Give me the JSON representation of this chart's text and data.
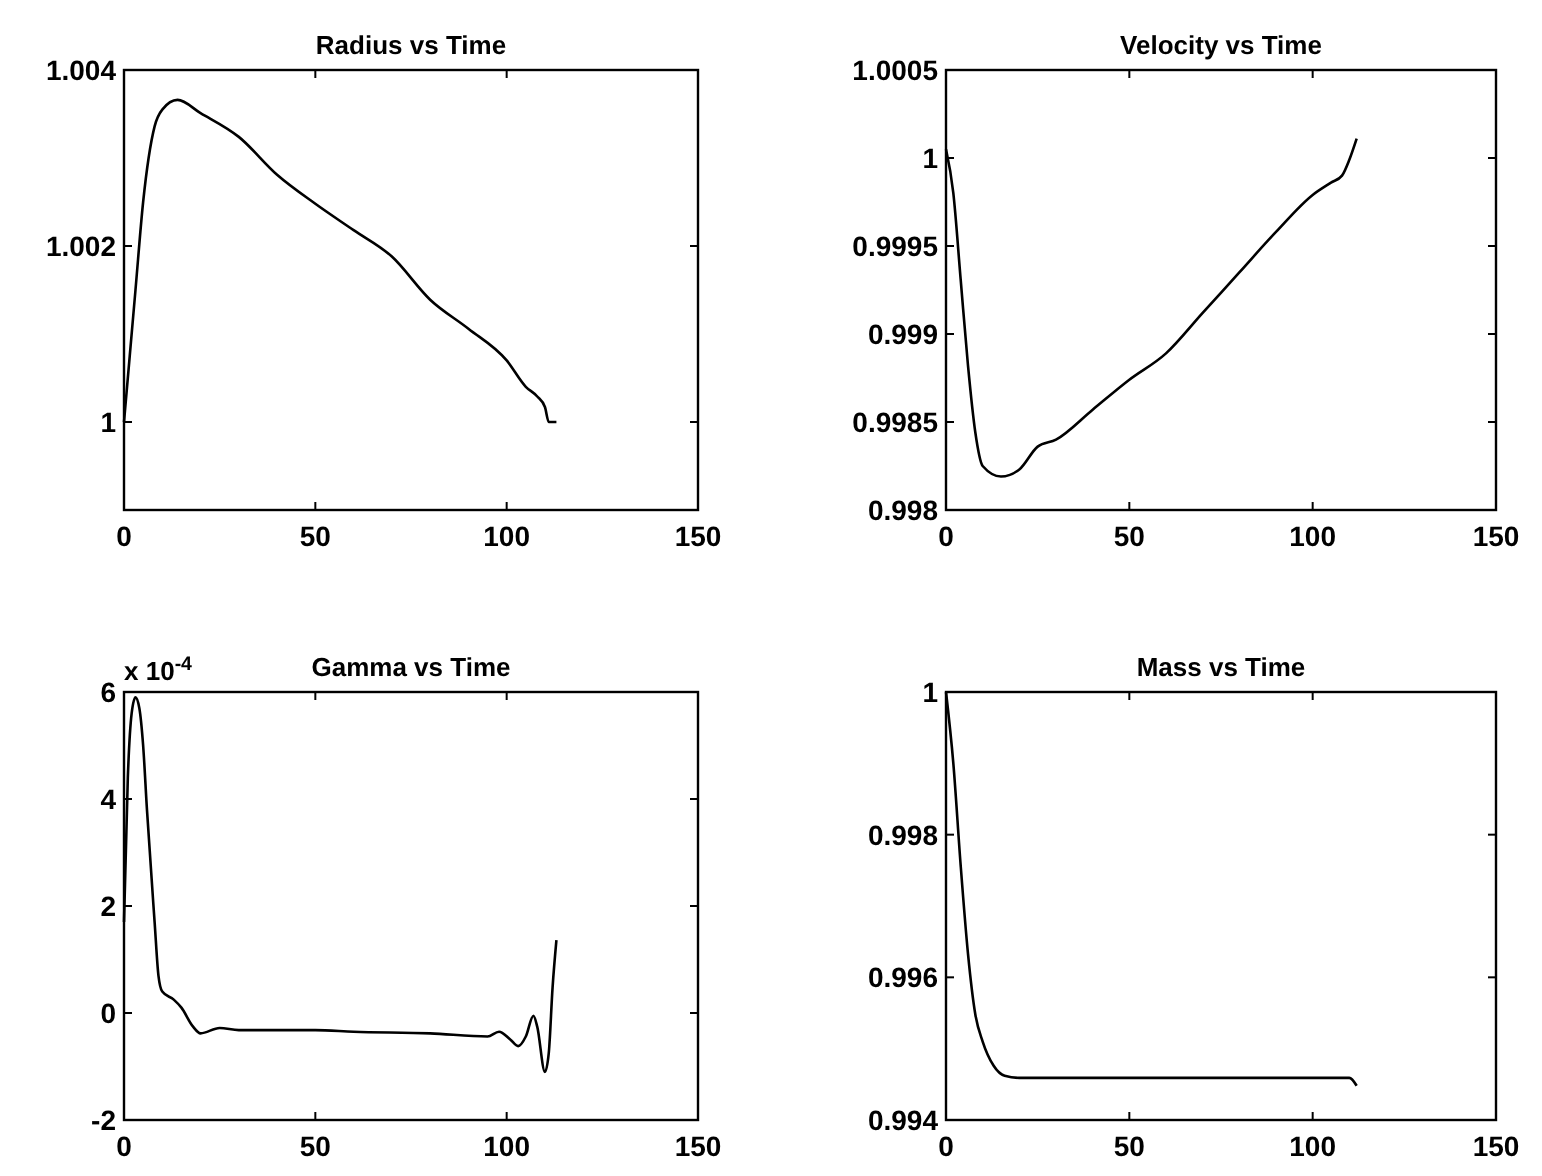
{
  "chart_data": [
    {
      "type": "line",
      "title": "Radius vs Time",
      "color": "#000000",
      "xlim": [
        0,
        150
      ],
      "xticks": [
        0,
        50,
        100,
        150
      ],
      "ylim": [
        0.999,
        1.004
      ],
      "yticks": [
        1,
        1.002,
        1.004
      ],
      "x": [
        0,
        3,
        5,
        8,
        10,
        14,
        20,
        30,
        40,
        50,
        60,
        70,
        80,
        90,
        100,
        105,
        108,
        110,
        111,
        113
      ],
      "values": [
        1.0,
        1.0015,
        1.0025,
        1.00336,
        1.00355,
        1.00366,
        1.00351,
        1.00324,
        1.00281,
        1.00248,
        1.00218,
        1.00188,
        1.00139,
        1.00106,
        1.0007,
        1.0004,
        1.00029,
        1.00017,
        1.0,
        1.0
      ]
    },
    {
      "type": "line",
      "title": "Velocity vs Time",
      "color": "#000000",
      "xlim": [
        0,
        150
      ],
      "xticks": [
        0,
        50,
        100,
        150
      ],
      "ylim": [
        0.998,
        1.0005
      ],
      "yticks": [
        0.998,
        0.9985,
        0.999,
        0.9995,
        1,
        1.0005
      ],
      "x": [
        0,
        2,
        4,
        6,
        8,
        10,
        15,
        20,
        25,
        30,
        40,
        50,
        60,
        70,
        80,
        90,
        100,
        105,
        108,
        110,
        112
      ],
      "values": [
        1.00005,
        0.9998,
        0.99931,
        0.99882,
        0.99844,
        0.99825,
        0.99819,
        0.99823,
        0.99836,
        0.9984,
        0.99857,
        0.99874,
        0.99889,
        0.99912,
        0.99935,
        0.99958,
        0.99979,
        0.99986,
        0.9999,
        0.99999,
        1.00011
      ]
    },
    {
      "type": "line",
      "title": "Gamma vs Time",
      "color": "#000000",
      "annotations": [
        "x 10$^{-4}$"
      ],
      "xlim": [
        0,
        150
      ],
      "xticks": [
        0,
        50,
        100,
        150
      ],
      "ylim": [
        -2,
        6
      ],
      "yticks": [
        -2,
        0,
        2,
        4,
        6
      ],
      "x": [
        0,
        1,
        2,
        3,
        4,
        5,
        6,
        8,
        9,
        10,
        13,
        15,
        18,
        20,
        25,
        30,
        50,
        60,
        80,
        95,
        98,
        101,
        103,
        105,
        107,
        108,
        110,
        111,
        112,
        113
      ],
      "values": [
        1.7,
        4.4,
        5.6,
        5.9,
        5.7,
        5.0,
        3.8,
        1.7,
        0.7,
        0.4,
        0.25,
        0.1,
        -0.25,
        -0.38,
        -0.28,
        -0.32,
        -0.32,
        -0.35,
        -0.38,
        -0.44,
        -0.35,
        -0.5,
        -0.62,
        -0.44,
        -0.05,
        -0.26,
        -1.1,
        -0.75,
        0.48,
        1.36
      ]
    },
    {
      "type": "line",
      "title": "Mass vs Time",
      "color": "#000000",
      "xlim": [
        0,
        150
      ],
      "xticks": [
        0,
        50,
        100,
        150
      ],
      "ylim": [
        0.994,
        1
      ],
      "yticks": [
        0.994,
        0.996,
        0.998,
        1
      ],
      "x": [
        0,
        2,
        4,
        6,
        8,
        10,
        13,
        16,
        20,
        60,
        110,
        112
      ],
      "values": [
        1.0,
        0.999,
        0.99757,
        0.99633,
        0.99548,
        0.9951,
        0.99476,
        0.99462,
        0.99459,
        0.99459,
        0.99459,
        0.99448
      ]
    }
  ]
}
